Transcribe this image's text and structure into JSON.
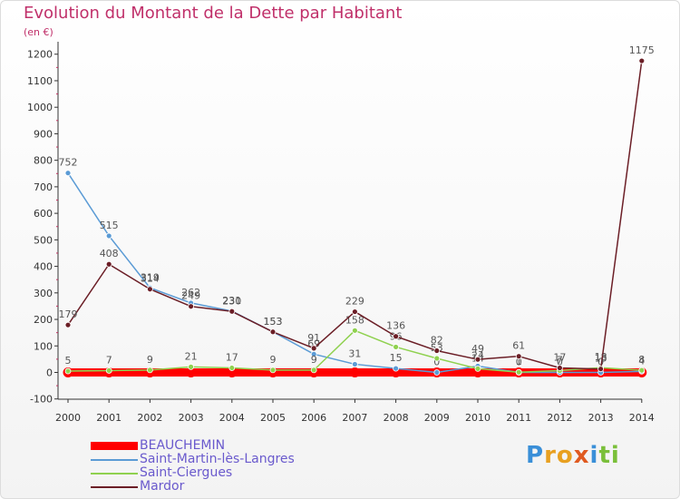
{
  "header": {
    "title": "Evolution du Montant de la Dette par Habitant",
    "unit": "(en €)"
  },
  "brand": {
    "letters": [
      "P",
      "r",
      "o",
      "x",
      "i",
      "t",
      "i"
    ],
    "colors": [
      "#3a8fd8",
      "#e8a020",
      "#e8a020",
      "#e05a20",
      "#3a8fd8",
      "#7abf3a",
      "#7abf3a"
    ]
  },
  "chart_data": {
    "type": "line",
    "title": "Evolution du Montant de la Dette par Habitant",
    "ylabel": "(en €)",
    "xlabel": "",
    "categories": [
      "2000",
      "2001",
      "2002",
      "2003",
      "2004",
      "2005",
      "2006",
      "2007",
      "2008",
      "2009",
      "2010",
      "2011",
      "2012",
      "2013",
      "2014"
    ],
    "yticks": [
      "-100",
      "0",
      "100",
      "200",
      "300",
      "400",
      "500",
      "600",
      "700",
      "800",
      "900",
      "1000",
      "1100",
      "1200"
    ],
    "ylim": [
      -100,
      1200
    ],
    "grid": false,
    "legend_position": "bottom-left",
    "series": [
      {
        "name": "BEAUCHEMIN",
        "color": "#ff0000",
        "values": [
          0,
          0,
          0,
          0,
          0,
          0,
          0,
          0,
          0,
          0,
          0,
          0,
          0,
          0,
          0
        ],
        "labels": []
      },
      {
        "name": "Saint-Martin-lès-Langres",
        "color": "#5b9bd5",
        "values": [
          752,
          515,
          319,
          262,
          231,
          153,
          69,
          31,
          15,
          0,
          24,
          0,
          0,
          0,
          4
        ],
        "labels": [
          "752",
          "515",
          "319",
          "262",
          "231",
          "153",
          "69",
          "31",
          "15",
          "0",
          "24",
          "0",
          "0",
          "0",
          "4"
        ]
      },
      {
        "name": "Saint-Ciergues",
        "color": "#8fd14f",
        "values": [
          5,
          7,
          9,
          21,
          17,
          9,
          9,
          158,
          96,
          53,
          14,
          1,
          7,
          18,
          8
        ],
        "labels": [
          "5",
          "7",
          "9",
          "21",
          "17",
          "9",
          "9",
          "158",
          "96",
          "53",
          "14",
          "1",
          "7",
          "18",
          "8"
        ]
      },
      {
        "name": "Mardor",
        "color": "#6b1e26",
        "values": [
          179,
          408,
          314,
          249,
          230,
          153,
          91,
          229,
          136,
          82,
          49,
          61,
          17,
          13,
          1175
        ],
        "labels": [
          "179",
          "408",
          "314",
          "249",
          "230",
          "153",
          "91",
          "229",
          "136",
          "82",
          "49",
          "61",
          "17",
          "13",
          "1175"
        ]
      }
    ]
  }
}
